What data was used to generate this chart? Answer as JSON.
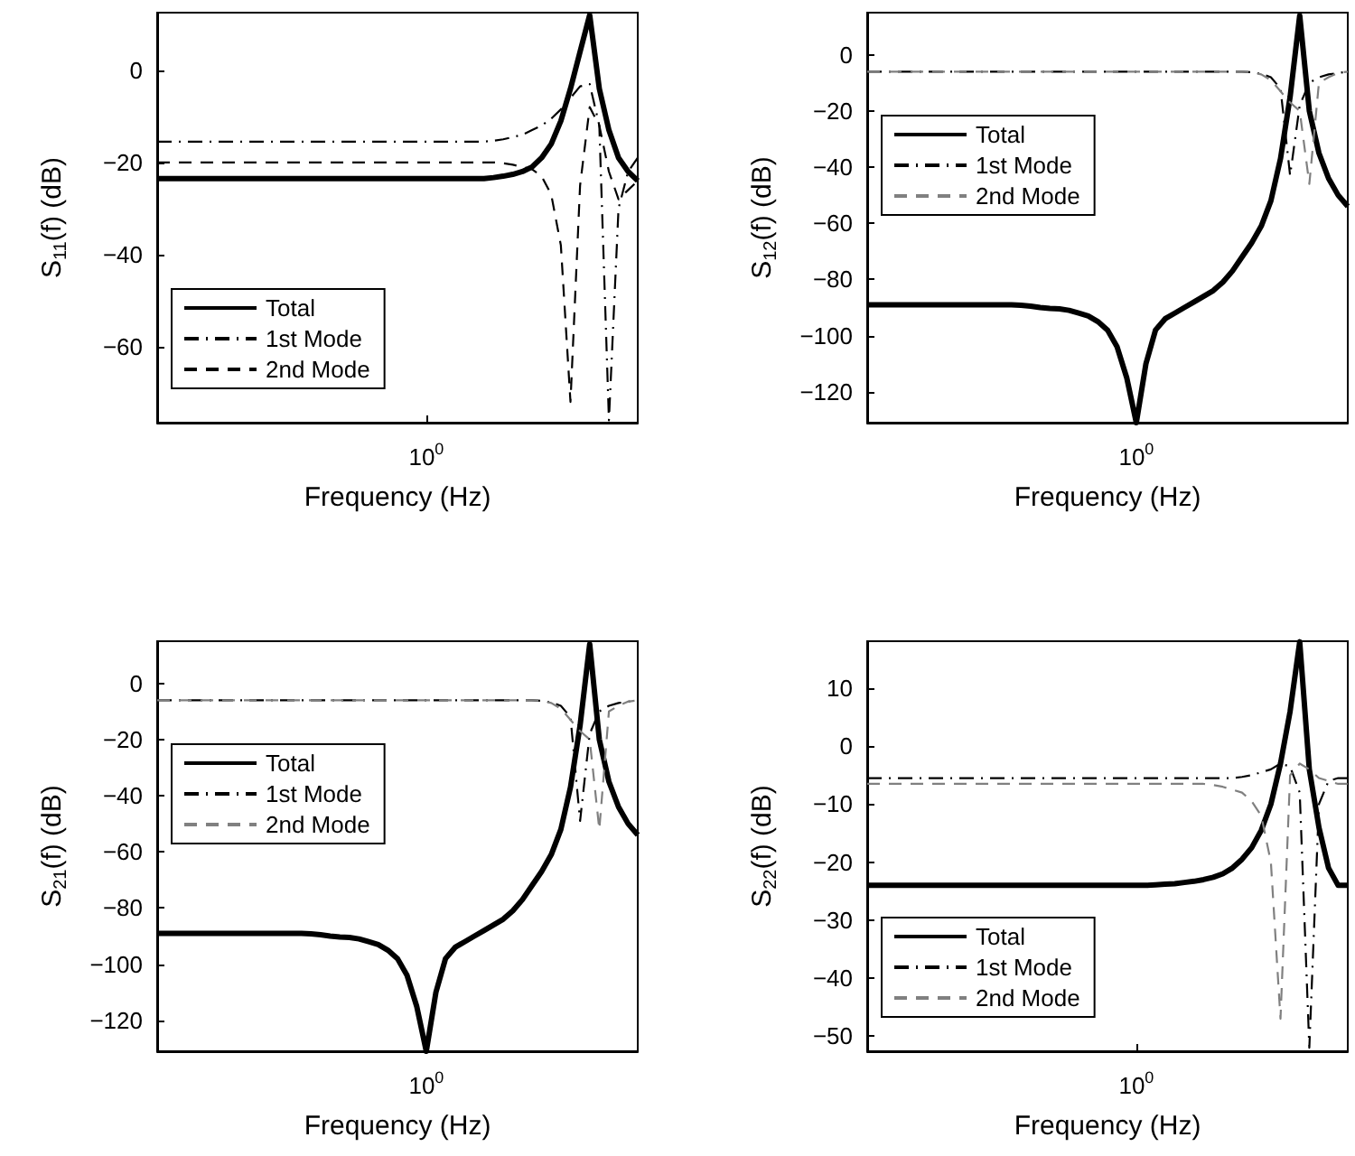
{
  "chart_data": [
    {
      "type": "line",
      "xlabel": "Frequency (Hz)",
      "ylabel": "S$_{11}$(f) (dB)",
      "categories": [
        null,
        null,
        null,
        null,
        null,
        null,
        null,
        null,
        null,
        null,
        null,
        null,
        null,
        null,
        null,
        null,
        null,
        null,
        null,
        null,
        null,
        null,
        null,
        null,
        null,
        null,
        null,
        null,
        "10$^{0}$",
        null,
        null,
        null,
        null,
        null,
        null,
        null,
        null,
        null,
        null,
        null,
        null,
        null,
        null,
        null,
        null,
        null,
        null,
        null,
        null,
        null,
        null
      ],
      "ylim": [
        -76.5,
        12.5
      ],
      "yticks": [
        -60,
        -40,
        -20,
        0
      ],
      "grid": false,
      "legend": "bottom left",
      "marker": "none",
      "series": [
        {
          "name": "Total",
          "color": "#000000",
          "line_style": "solid",
          "values": [
            -23.5,
            -23.5,
            -23.5,
            -23.5,
            -23.5,
            -23.5,
            -23.5,
            -23.5,
            -23.5,
            -23.5,
            -23.5,
            -23.5,
            -23.5,
            -23.5,
            -23.5,
            -23.5,
            -23.5,
            -23.5,
            -23.5,
            -23.5,
            -23.5,
            -23.5,
            -23.5,
            -23.5,
            -23.5,
            -23.5,
            -23.5,
            -23.5,
            -23.5,
            -23.5,
            -23.5,
            -23.5,
            -23.5,
            -23.5,
            -23.5,
            -23.3,
            -23,
            -22.6,
            -22,
            -21,
            -19,
            -16,
            -11,
            -4,
            4,
            12,
            -4,
            -13,
            -19,
            -22,
            -24
          ]
        },
        {
          "name": "1st Mode",
          "color": "#000000",
          "line_style": "dashdot",
          "values": [
            -15.5,
            -15.5,
            -15.5,
            -15.5,
            -15.5,
            -15.5,
            -15.5,
            -15.5,
            -15.5,
            -15.5,
            -15.5,
            -15.5,
            -15.5,
            -15.5,
            -15.5,
            -15.5,
            -15.5,
            -15.5,
            -15.5,
            -15.5,
            -15.5,
            -15.5,
            -15.5,
            -15.5,
            -15.5,
            -15.5,
            -15.5,
            -15.5,
            -15.5,
            -15.5,
            -15.5,
            -15.5,
            -15.5,
            -15.5,
            -15.5,
            -15.3,
            -15,
            -14.5,
            -14,
            -13,
            -12,
            -10.5,
            -8.5,
            -6,
            -3.5,
            -3,
            -12,
            -76,
            -30,
            -22,
            -19
          ]
        },
        {
          "name": "2nd Mode",
          "color": "#000000",
          "line_style": "dashed",
          "values": [
            -20,
            -20,
            -20,
            -20,
            -20,
            -20,
            -20,
            -20,
            -20,
            -20,
            -20,
            -20,
            -20,
            -20,
            -20,
            -20,
            -20,
            -20,
            -20,
            -20,
            -20,
            -20,
            -20,
            -20,
            -20,
            -20,
            -20,
            -20,
            -20,
            -20,
            -20,
            -20,
            -20,
            -20,
            -20,
            -20,
            -20.2,
            -20.5,
            -21,
            -21.5,
            -23,
            -27,
            -38,
            -72,
            -25,
            -8,
            -12,
            -22,
            -28,
            -26,
            -24
          ]
        }
      ]
    },
    {
      "type": "line",
      "xlabel": "Frequency (Hz)",
      "ylabel": "S$_{12}$(f) (dB)",
      "categories": [
        null,
        null,
        null,
        null,
        null,
        null,
        null,
        null,
        null,
        null,
        null,
        null,
        null,
        null,
        null,
        null,
        null,
        null,
        null,
        null,
        null,
        null,
        null,
        null,
        null,
        null,
        null,
        null,
        "10$^{0}$",
        null,
        null,
        null,
        null,
        null,
        null,
        null,
        null,
        null,
        null,
        null,
        null,
        null,
        null,
        null,
        null,
        null,
        null,
        null,
        null,
        null,
        null
      ],
      "ylim": [
        -131,
        15
      ],
      "yticks": [
        -120,
        -100,
        -80,
        -60,
        -40,
        -20,
        0
      ],
      "grid": false,
      "legend": "left",
      "marker": "none",
      "series": [
        {
          "name": "Total",
          "color": "#000000",
          "line_style": "solid",
          "values": [
            -89,
            -89,
            -89,
            -89,
            -89,
            -89,
            -89,
            -89,
            -89,
            -89,
            -89,
            -89,
            -89,
            -89,
            -89,
            -89,
            -89.2,
            -89.5,
            -90,
            -90.3,
            -90.5,
            -91,
            -92,
            -93,
            -95,
            -98,
            -104,
            -115,
            -131,
            -110,
            -98,
            -94,
            -92,
            -90,
            -88,
            -86,
            -84,
            -81,
            -77,
            -72,
            -67,
            -61,
            -52,
            -37,
            -15,
            14,
            -20,
            -35,
            -44,
            -50,
            -54
          ]
        },
        {
          "name": "1st Mode",
          "color": "#000000",
          "line_style": "dashdot",
          "values": [
            -6,
            -6,
            -6,
            -6,
            -6,
            -6,
            -6,
            -6,
            -6,
            -6,
            -6,
            -6,
            -6,
            -6,
            -6,
            -6,
            -6,
            -6,
            -6,
            -6,
            -6,
            -6,
            -6,
            -6,
            -6,
            -6,
            -6,
            -6,
            -6,
            -6,
            -6,
            -6,
            -6,
            -6,
            -6,
            -6,
            -6,
            -6,
            -6,
            -6,
            -6.2,
            -6.8,
            -8,
            -12,
            -43,
            -18,
            -10,
            -8,
            -7,
            -6.5,
            -6
          ]
        },
        {
          "name": "2nd Mode",
          "color": "#808080",
          "line_style": "dashed",
          "values": [
            -6,
            -6,
            -6,
            -6,
            -6,
            -6,
            -6,
            -6,
            -6,
            -6,
            -6,
            -6,
            -6,
            -6,
            -6,
            -6,
            -6,
            -6,
            -6,
            -6,
            -6,
            -6,
            -6,
            -6,
            -6,
            -6,
            -6,
            -6,
            -6,
            -6,
            -6,
            -6,
            -6,
            -6,
            -6,
            -6,
            -6,
            -6,
            -6,
            -6,
            -6.2,
            -7,
            -9,
            -13,
            -17,
            -20,
            -46,
            -10,
            -8,
            -6.5,
            -6
          ]
        }
      ]
    },
    {
      "type": "line",
      "xlabel": "Frequency (Hz)",
      "ylabel": "S$_{21}$(f) (dB)",
      "categories": [
        null,
        null,
        null,
        null,
        null,
        null,
        null,
        null,
        null,
        null,
        null,
        null,
        null,
        null,
        null,
        null,
        null,
        null,
        null,
        null,
        null,
        null,
        null,
        null,
        null,
        null,
        null,
        null,
        "10$^{0}$",
        null,
        null,
        null,
        null,
        null,
        null,
        null,
        null,
        null,
        null,
        null,
        null,
        null,
        null,
        null,
        null,
        null,
        null,
        null,
        null,
        null,
        null
      ],
      "ylim": [
        -131,
        15
      ],
      "yticks": [
        -120,
        -100,
        -80,
        -60,
        -40,
        -20,
        0
      ],
      "grid": false,
      "legend": "left",
      "marker": "none",
      "series": [
        {
          "name": "Total",
          "color": "#000000",
          "line_style": "solid",
          "values": [
            -89,
            -89,
            -89,
            -89,
            -89,
            -89,
            -89,
            -89,
            -89,
            -89,
            -89,
            -89,
            -89,
            -89,
            -89,
            -89,
            -89.2,
            -89.5,
            -90,
            -90.3,
            -90.5,
            -91,
            -92,
            -93,
            -95,
            -98,
            -104,
            -115,
            -131,
            -110,
            -98,
            -94,
            -92,
            -90,
            -88,
            -86,
            -84,
            -81,
            -77,
            -72,
            -67,
            -61,
            -52,
            -37,
            -15,
            14,
            -20,
            -35,
            -44,
            -50,
            -54
          ]
        },
        {
          "name": "1st Mode",
          "color": "#000000",
          "line_style": "dashdot",
          "values": [
            -6,
            -6,
            -6,
            -6,
            -6,
            -6,
            -6,
            -6,
            -6,
            -6,
            -6,
            -6,
            -6,
            -6,
            -6,
            -6,
            -6,
            -6,
            -6,
            -6,
            -6,
            -6,
            -6,
            -6,
            -6,
            -6,
            -6,
            -6,
            -6,
            -6,
            -6,
            -6,
            -6,
            -6,
            -6,
            -6,
            -6,
            -6,
            -6,
            -6,
            -6.2,
            -6.8,
            -8,
            -12,
            -49,
            -18,
            -10,
            -8,
            -7,
            -6.5,
            -6
          ]
        },
        {
          "name": "2nd Mode",
          "color": "#808080",
          "line_style": "dashed",
          "values": [
            -6,
            -6,
            -6,
            -6,
            -6,
            -6,
            -6,
            -6,
            -6,
            -6,
            -6,
            -6,
            -6,
            -6,
            -6,
            -6,
            -6,
            -6,
            -6,
            -6,
            -6,
            -6,
            -6,
            -6,
            -6,
            -6,
            -6,
            -6,
            -6,
            -6,
            -6,
            -6,
            -6,
            -6,
            -6,
            -6,
            -6,
            -6,
            -6,
            -6,
            -6.2,
            -7,
            -9,
            -13,
            -17,
            -20,
            -52,
            -10,
            -8,
            -6.5,
            -6
          ]
        }
      ]
    },
    {
      "type": "line",
      "xlabel": "Frequency (Hz)",
      "ylabel": "S$_{22}$(f) (dB)",
      "categories": [
        null,
        null,
        null,
        null,
        null,
        null,
        null,
        null,
        null,
        null,
        null,
        null,
        null,
        null,
        null,
        null,
        null,
        null,
        null,
        null,
        null,
        null,
        null,
        null,
        null,
        null,
        null,
        null,
        "10$^{0}$",
        null,
        null,
        null,
        null,
        null,
        null,
        null,
        null,
        null,
        null,
        null,
        null,
        null,
        null,
        null,
        null,
        null,
        null,
        null,
        null,
        null,
        null
      ],
      "ylim": [
        -52.6,
        18.1
      ],
      "yticks": [
        -50,
        -40,
        -30,
        -20,
        -10,
        0,
        10
      ],
      "grid": false,
      "legend": "bottom left",
      "marker": "none",
      "series": [
        {
          "name": "Total",
          "color": "#000000",
          "line_style": "solid",
          "values": [
            -24,
            -24,
            -24,
            -24,
            -24,
            -24,
            -24,
            -24,
            -24,
            -24,
            -24,
            -24,
            -24,
            -24,
            -24,
            -24,
            -24,
            -24,
            -24,
            -24,
            -24,
            -24,
            -24,
            -24,
            -24,
            -24,
            -24,
            -24,
            -24,
            -24,
            -23.9,
            -23.8,
            -23.7,
            -23.5,
            -23.3,
            -23,
            -22.6,
            -22,
            -21,
            -19.5,
            -17.5,
            -14.5,
            -10,
            -3,
            6,
            18,
            -4,
            -14,
            -21,
            -24,
            -24
          ]
        },
        {
          "name": "1st Mode",
          "color": "#000000",
          "line_style": "dashdot",
          "values": [
            -5.5,
            -5.5,
            -5.5,
            -5.5,
            -5.5,
            -5.5,
            -5.5,
            -5.5,
            -5.5,
            -5.5,
            -5.5,
            -5.5,
            -5.5,
            -5.5,
            -5.5,
            -5.5,
            -5.5,
            -5.5,
            -5.5,
            -5.5,
            -5.5,
            -5.5,
            -5.5,
            -5.5,
            -5.5,
            -5.5,
            -5.5,
            -5.5,
            -5.5,
            -5.5,
            -5.5,
            -5.5,
            -5.5,
            -5.5,
            -5.5,
            -5.5,
            -5.5,
            -5.5,
            -5.5,
            -5.3,
            -5,
            -4.5,
            -4,
            -3,
            -3.5,
            -8,
            -52,
            -10,
            -6,
            -5.5,
            -5.5
          ]
        },
        {
          "name": "2nd Mode",
          "color": "#808080",
          "line_style": "dashed",
          "values": [
            -6.5,
            -6.5,
            -6.5,
            -6.5,
            -6.5,
            -6.5,
            -6.5,
            -6.5,
            -6.5,
            -6.5,
            -6.5,
            -6.5,
            -6.5,
            -6.5,
            -6.5,
            -6.5,
            -6.5,
            -6.5,
            -6.5,
            -6.5,
            -6.5,
            -6.5,
            -6.5,
            -6.5,
            -6.5,
            -6.5,
            -6.5,
            -6.5,
            -6.5,
            -6.5,
            -6.5,
            -6.5,
            -6.5,
            -6.5,
            -6.5,
            -6.5,
            -6.7,
            -7,
            -7.5,
            -8,
            -9.5,
            -12,
            -20,
            -47,
            -5,
            -3,
            -4,
            -5.5,
            -6,
            -6.5,
            -6.5
          ]
        }
      ]
    }
  ]
}
